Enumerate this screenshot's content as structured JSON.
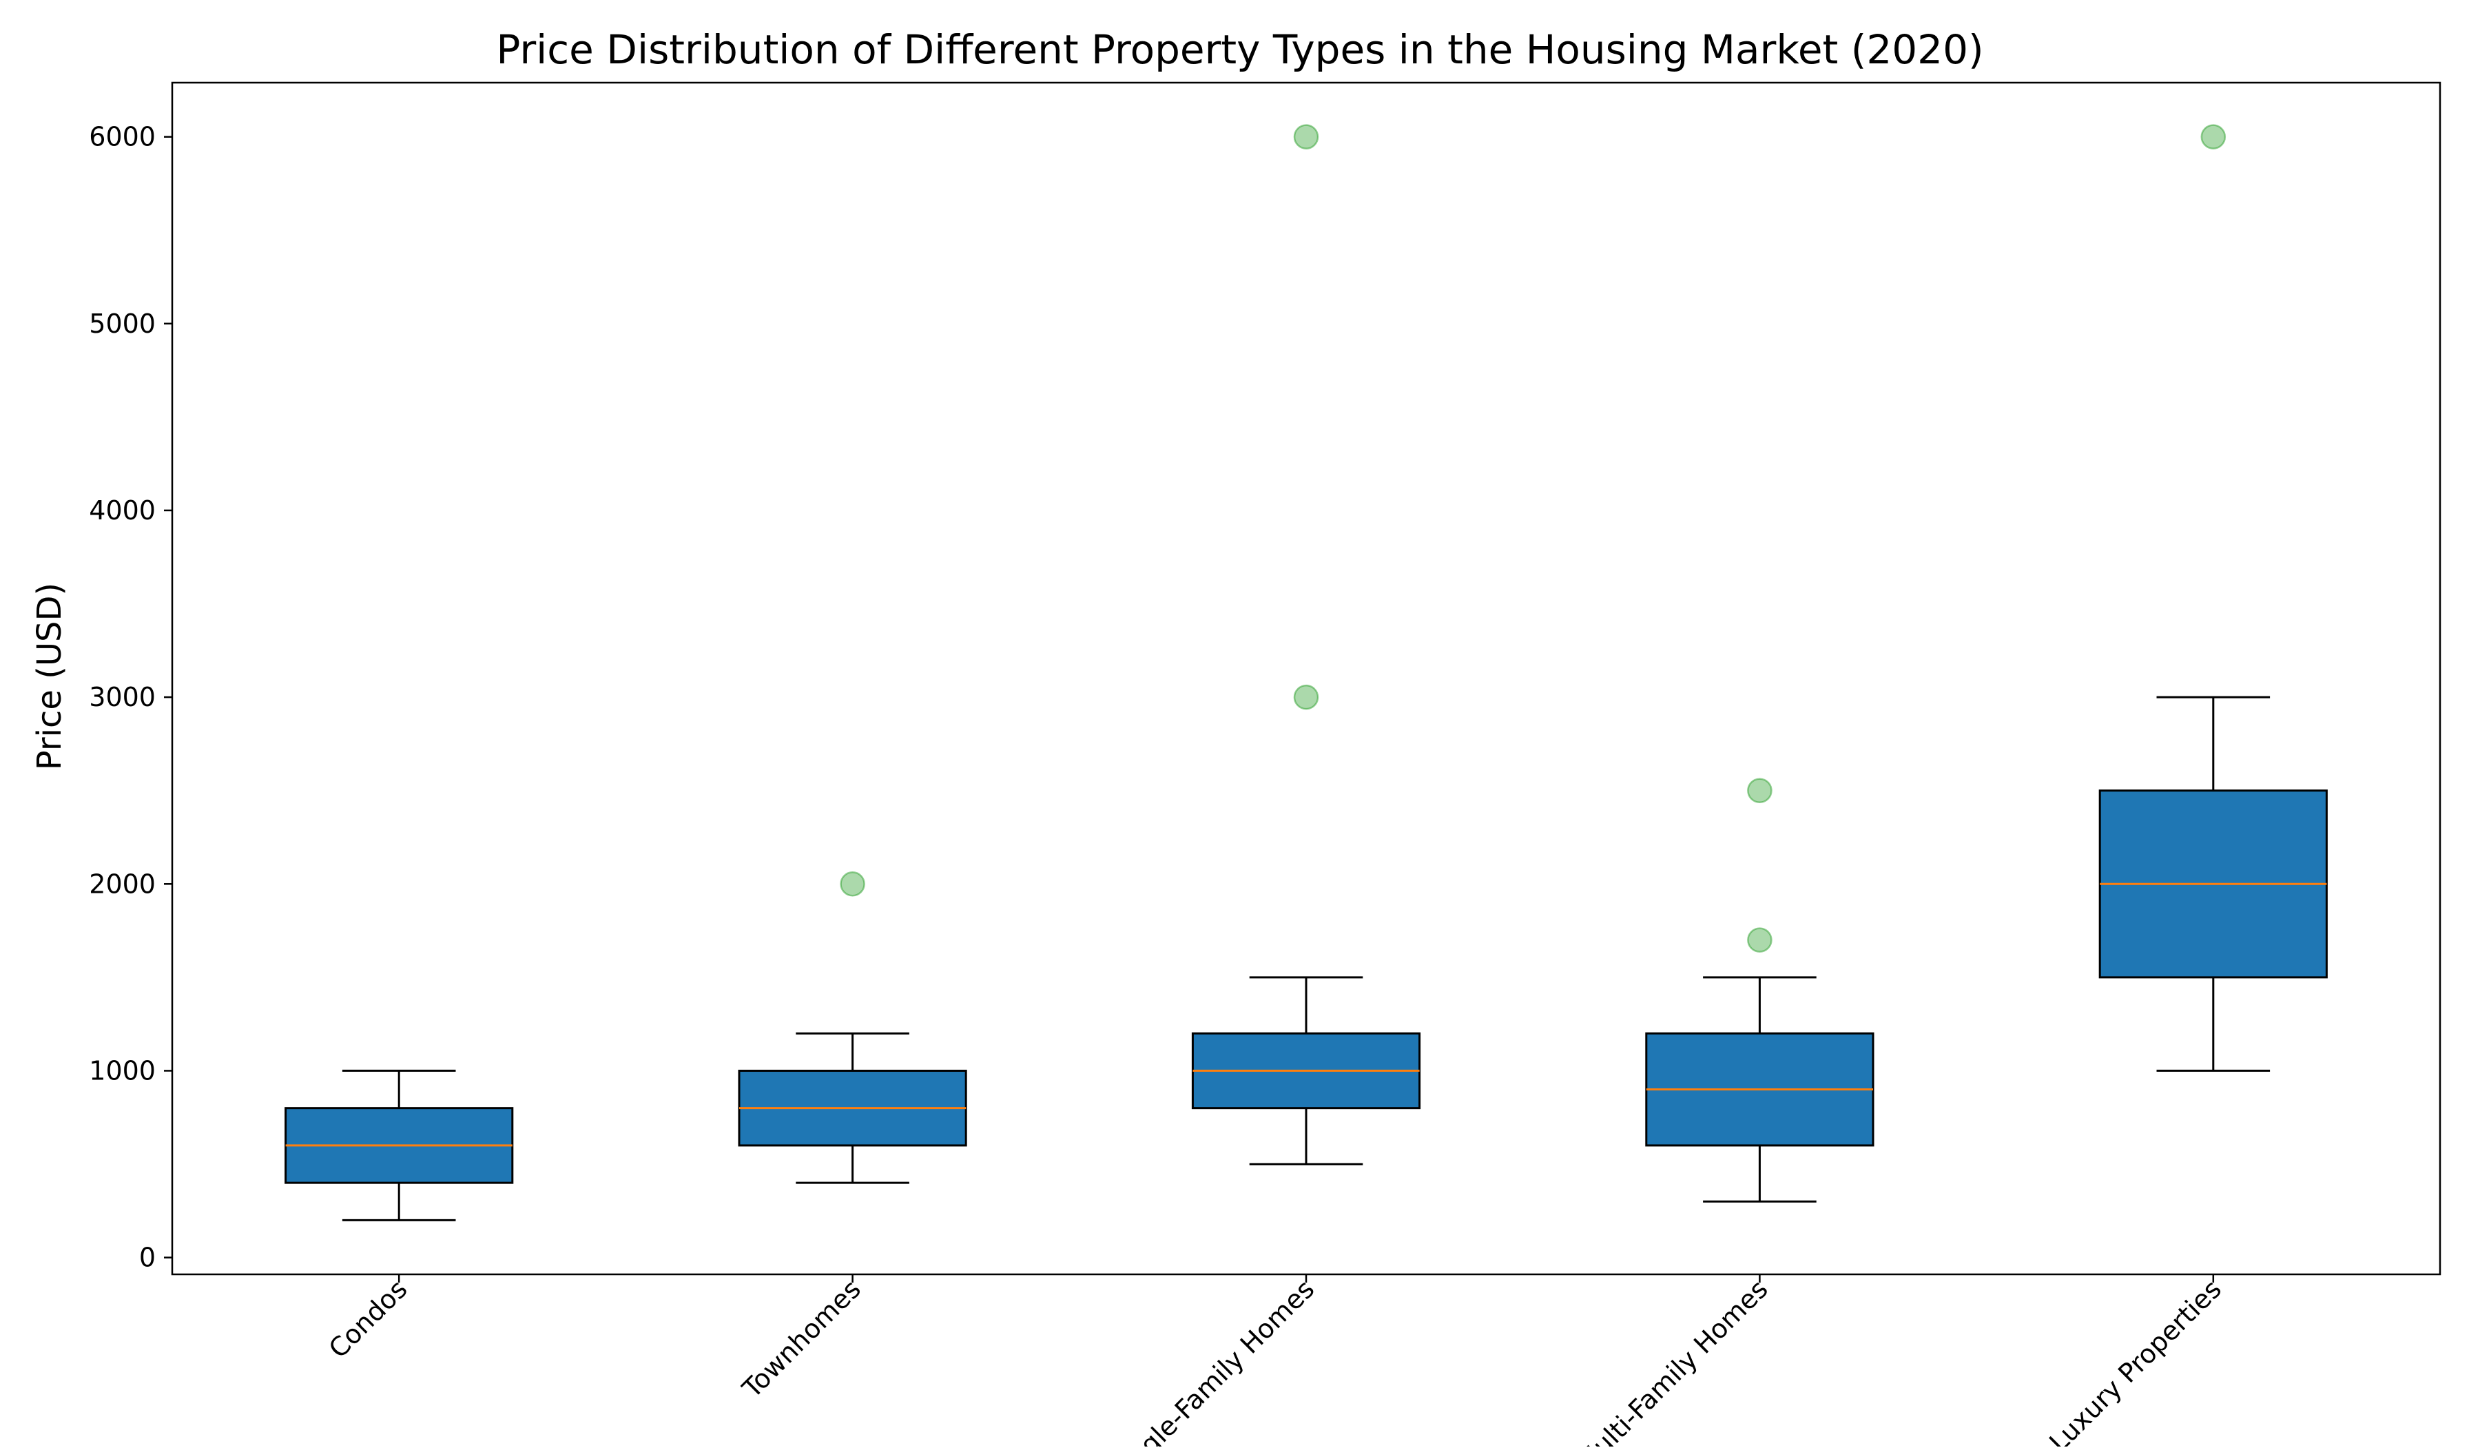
{
  "chart_data": {
    "type": "box",
    "title": "Price Distribution of Different Property Types in the Housing Market (2020)",
    "xlabel": "",
    "ylabel": "Price (USD)",
    "ylim": [
      -90,
      6290
    ],
    "yticks": [
      0,
      1000,
      2000,
      3000,
      4000,
      5000,
      6000
    ],
    "grid": false,
    "colors": {
      "box_fill": "#1f77b4",
      "median": "#ff7f0e",
      "outlier": "#2ca02c",
      "edge": "#000000"
    },
    "categories": [
      "Condos",
      "Townhomes",
      "Single-Family Homes",
      "Multi-Family Homes",
      "Luxury Properties"
    ],
    "boxes": [
      {
        "category": "Condos",
        "whisker_low": 200,
        "q1": 400,
        "median": 600,
        "q3": 800,
        "whisker_high": 1000,
        "outliers": []
      },
      {
        "category": "Townhomes",
        "whisker_low": 400,
        "q1": 600,
        "median": 800,
        "q3": 1000,
        "whisker_high": 1200,
        "outliers": [
          2000
        ]
      },
      {
        "category": "Single-Family Homes",
        "whisker_low": 500,
        "q1": 800,
        "median": 1000,
        "q3": 1200,
        "whisker_high": 1500,
        "outliers": [
          3000,
          6000
        ]
      },
      {
        "category": "Multi-Family Homes",
        "whisker_low": 300,
        "q1": 600,
        "median": 900,
        "q3": 1200,
        "whisker_high": 1500,
        "outliers": [
          1700,
          2500
        ]
      },
      {
        "category": "Luxury Properties",
        "whisker_low": 1000,
        "q1": 1500,
        "median": 2000,
        "q3": 2500,
        "whisker_high": 3000,
        "outliers": [
          6000
        ]
      }
    ]
  }
}
